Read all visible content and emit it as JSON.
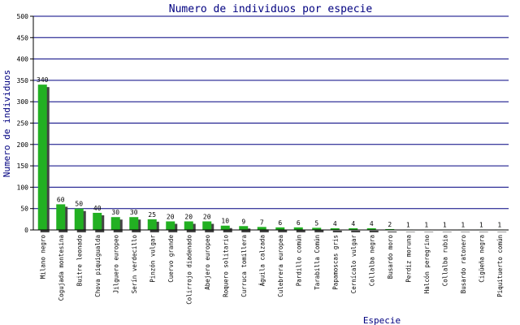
{
  "chart_data": {
    "type": "bar",
    "title": "Numero de individuos por especie",
    "xlabel": "Especie",
    "ylabel": "Numero de individuos",
    "ylim": [
      0,
      500
    ],
    "yticks": [
      0,
      50,
      100,
      150,
      200,
      250,
      300,
      350,
      400,
      450,
      500
    ],
    "grid": true,
    "legend": "none",
    "colors": {
      "bar": "#22b022",
      "shadow": "#444444",
      "grid": "#000080",
      "axis": "#000000",
      "text": "#000080"
    },
    "categories": [
      "Milano negro",
      "Cogujada montesina",
      "Buitre leonado",
      "Chova piquigualda",
      "Jilguero europeo",
      "Serín verdecillo",
      "Pinzón vulgar",
      "Cuervo grande",
      "Colirrojo diadenado",
      "Abejero europeo",
      "Roquero solitario",
      "Curruca tomillera",
      "Águila calzada",
      "Culebrera europea",
      "Pardillo común",
      "Tarabilla Común",
      "Papamoscas gris",
      "Cernícalo vulgar",
      "Collalba negra",
      "Busardo moro",
      "Perdiz moruna",
      "Halcón peregrino",
      "Collalba rubia",
      "Busardo ratonero",
      "Cigüeña negra",
      "Piquituerto común"
    ],
    "values": [
      340,
      60,
      50,
      40,
      30,
      30,
      25,
      20,
      20,
      20,
      10,
      9,
      7,
      6,
      6,
      5,
      4,
      4,
      4,
      2,
      1,
      1,
      1,
      1,
      1,
      1
    ],
    "data_labels": [
      "340",
      "60",
      "50",
      "40",
      "30",
      "30",
      "25",
      "20",
      "20",
      "20",
      "10",
      "9",
      "7",
      "6",
      "6",
      "5",
      "4",
      "4",
      "4",
      "2",
      "1",
      "1",
      "1",
      "1",
      "1",
      "1"
    ]
  }
}
